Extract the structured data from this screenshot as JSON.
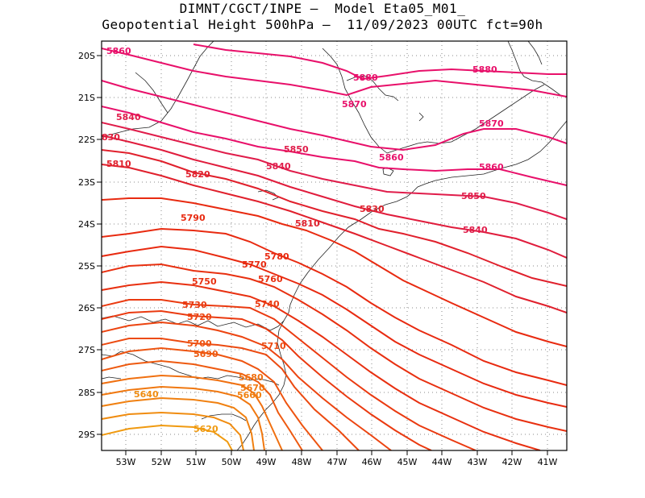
{
  "header": {
    "line1": "DIMNT/CGCT/INPE –  Model Eta05_M01_",
    "line2": "Geopotential Height 500hPa –  11/09/2023 00UTC fct=90h"
  },
  "axes": {
    "lat_ticks": [
      "20S",
      "21S",
      "22S",
      "23S",
      "24S",
      "25S",
      "26S",
      "27S",
      "28S",
      "29S"
    ],
    "lon_ticks": [
      "53W",
      "52W",
      "51W",
      "50W",
      "49W",
      "48W",
      "47W",
      "46W",
      "45W",
      "44W",
      "43W",
      "42W",
      "41W"
    ]
  },
  "contours": {
    "labels": [
      {
        "text": "5860",
        "color": "#e8106a"
      },
      {
        "text": "5880",
        "color": "#e8106a"
      },
      {
        "text": "5880",
        "color": "#e8106a"
      },
      {
        "text": "5870",
        "color": "#e8106a"
      },
      {
        "text": "5870",
        "color": "#e8106a"
      },
      {
        "text": "5840",
        "color": "#e01c4a"
      },
      {
        "text": "5850",
        "color": "#e01c4a"
      },
      {
        "text": "5860",
        "color": "#e8106a"
      },
      {
        "text": "5860",
        "color": "#e8106a"
      },
      {
        "text": "830",
        "color": "#e01c3c"
      },
      {
        "text": "5810",
        "color": "#e0202c"
      },
      {
        "text": "5840",
        "color": "#e01c4a"
      },
      {
        "text": "5820",
        "color": "#e0202c"
      },
      {
        "text": "5850",
        "color": "#e01c4a"
      },
      {
        "text": "5830",
        "color": "#e0202c"
      },
      {
        "text": "5790",
        "color": "#e82a10"
      },
      {
        "text": "5810",
        "color": "#e0202c"
      },
      {
        "text": "5840",
        "color": "#e01c4a"
      },
      {
        "text": "5780",
        "color": "#e82a10"
      },
      {
        "text": "5770",
        "color": "#e82a10"
      },
      {
        "text": "5760",
        "color": "#e83010"
      },
      {
        "text": "5750",
        "color": "#e83010"
      },
      {
        "text": "5740",
        "color": "#ea3a10"
      },
      {
        "text": "5730",
        "color": "#ea3a10"
      },
      {
        "text": "5720",
        "color": "#ec4410"
      },
      {
        "text": "5710",
        "color": "#ec4a10"
      },
      {
        "text": "5700",
        "color": "#ee5410"
      },
      {
        "text": "5690",
        "color": "#ee5a10"
      },
      {
        "text": "5680",
        "color": "#f07010"
      },
      {
        "text": "5670",
        "color": "#f07810"
      },
      {
        "text": "5660",
        "color": "#f08010"
      },
      {
        "text": "5640",
        "color": "#f08c10"
      },
      {
        "text": "5620",
        "color": "#f09a10"
      }
    ]
  }
}
